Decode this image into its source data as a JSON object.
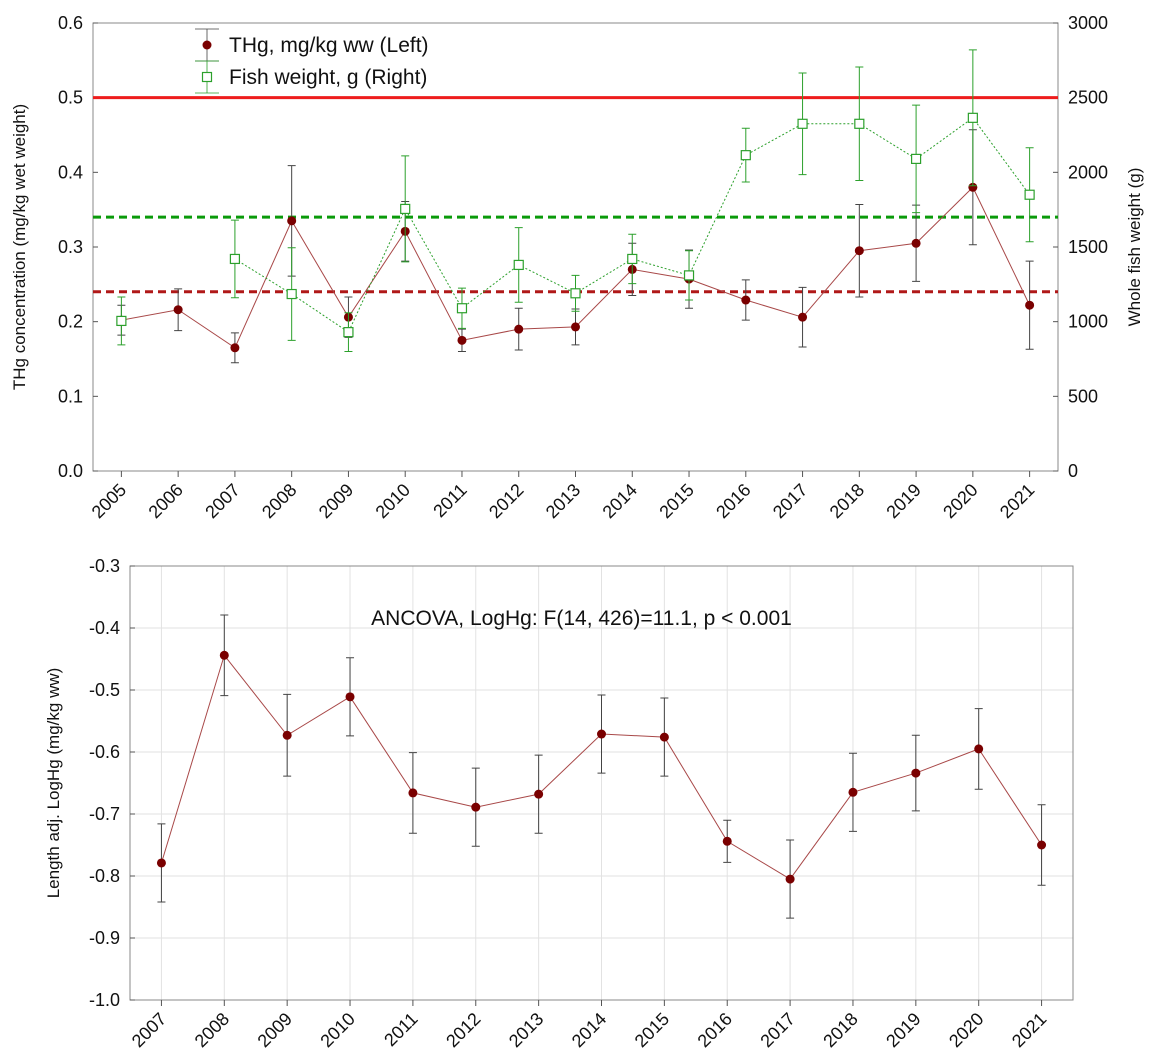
{
  "chart_data": [
    {
      "type": "line",
      "categories": [
        "2005",
        "2006",
        "2007",
        "2008",
        "2009",
        "2010",
        "2011",
        "2012",
        "2013",
        "2014",
        "2015",
        "2016",
        "2017",
        "2018",
        "2019",
        "2020",
        "2021"
      ],
      "ylabel": "THg concentration (mg/kg wet weight)",
      "y2label": "Whole fish weight (g)",
      "ylim": [
        0,
        0.6
      ],
      "yticks": [
        {
          "value": 0,
          "label": "0.0"
        },
        0.1,
        0.2,
        0.3,
        0.4,
        0.5,
        0.6
      ],
      "y2lim": [
        0,
        3000
      ],
      "y2ticks": [
        0,
        500,
        1000,
        1500,
        2000,
        2500,
        3000
      ],
      "grid": false,
      "legend": "upper left",
      "hlines": [
        {
          "value": 0.5,
          "color": "#ee1c1c",
          "style": "solid"
        },
        {
          "value": 0.34,
          "color": "#0a9a0a",
          "style": "dashed"
        },
        {
          "value": 0.24,
          "color": "#b01818",
          "style": "dashed"
        }
      ],
      "series": [
        {
          "name": "THg, mg/kg ww (Left)",
          "color": "#7a0000",
          "line_color": "#a84848",
          "marker": "circle",
          "linestyle": "solid",
          "values": [
            0.202,
            0.216,
            0.165,
            0.335,
            0.206,
            0.321,
            0.175,
            0.19,
            0.193,
            0.27,
            0.257,
            0.229,
            0.206,
            0.295,
            0.305,
            0.38,
            0.222
          ],
          "errors": [
            0.02,
            0.028,
            0.02,
            0.074,
            0.027,
            0.04,
            0.015,
            0.028,
            0.024,
            0.035,
            0.039,
            0.027,
            0.04,
            0.062,
            0.051,
            0.077,
            0.059
          ]
        },
        {
          "name": "Fish weight, g (Right)",
          "color": "#2ca02c",
          "line_color": "#2ca02c",
          "marker": "square",
          "linestyle": "dotted",
          "axis": "y2",
          "values": [
            1005,
            null,
            1420,
            1185,
            930,
            1755,
            1090,
            1380,
            1190,
            1420,
            1310,
            2115,
            2325,
            2325,
            2090,
            2365,
            1850
          ],
          "errors": [
            160,
            null,
            260,
            310,
            130,
            355,
            135,
            250,
            120,
            165,
            165,
            180,
            340,
            380,
            360,
            455,
            315
          ]
        }
      ]
    },
    {
      "type": "line",
      "categories": [
        "2007",
        "2008",
        "2009",
        "2010",
        "2011",
        "2012",
        "2013",
        "2014",
        "2015",
        "2016",
        "2017",
        "2018",
        "2019",
        "2020",
        "2021"
      ],
      "ylabel": "Length adj. LogHg (mg/kg ww)",
      "annotation": "ANCOVA, LogHg: F(14, 426)=11.1, p < 0.001",
      "ylim": [
        -1.0,
        -0.3
      ],
      "yticks": [
        {
          "value": -1.0,
          "label": "-1.0"
        },
        -0.9,
        -0.8,
        -0.7,
        -0.6,
        -0.5,
        -0.4,
        -0.3
      ],
      "grid": true,
      "series": [
        {
          "color": "#7a0000",
          "line_color": "#a84848",
          "marker": "circle",
          "linestyle": "solid",
          "values": [
            -0.779,
            -0.444,
            -0.573,
            -0.511,
            -0.666,
            -0.689,
            -0.668,
            -0.571,
            -0.576,
            -0.744,
            -0.805,
            -0.665,
            -0.634,
            -0.595,
            -0.75
          ],
          "errors": [
            0.063,
            0.065,
            0.066,
            0.063,
            0.065,
            0.063,
            0.063,
            0.063,
            0.063,
            0.034,
            0.063,
            0.063,
            0.061,
            0.065,
            0.065
          ]
        }
      ]
    }
  ]
}
